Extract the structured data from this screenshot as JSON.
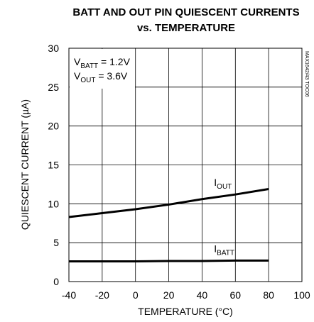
{
  "chart_data": {
    "type": "line",
    "title": [
      "BATT AND OUT PIN QUIESCENT CURRENTS",
      "vs. TEMPERATURE"
    ],
    "x_label": "TEMPERATURE (°C)",
    "y_label": "QUIESCENT CURRENT (µA)",
    "side_note": "MAX1642/43 TOC06",
    "annotations": [
      {
        "main": "V",
        "sub": "BATT",
        "rest": " = 1.2V"
      },
      {
        "main": "V",
        "sub": "OUT",
        "rest": " = 3.6V"
      }
    ],
    "x": [
      -40,
      -20,
      0,
      20,
      40,
      60,
      80
    ],
    "series": [
      {
        "name": "I",
        "name_sub": "OUT",
        "color": "#000000",
        "values": [
          8.3,
          8.8,
          9.3,
          9.9,
          10.6,
          11.2,
          11.9
        ]
      },
      {
        "name": "I",
        "name_sub": "BATT",
        "color": "#000000",
        "values": [
          2.6,
          2.6,
          2.6,
          2.65,
          2.65,
          2.7,
          2.7
        ]
      }
    ],
    "xlim": [
      -40,
      100
    ],
    "xticks": [
      -40,
      -20,
      0,
      20,
      40,
      60,
      80,
      100
    ],
    "ylim": [
      0,
      30
    ],
    "yticks": [
      0,
      5,
      10,
      15,
      20,
      25,
      30
    ],
    "grid": true
  }
}
